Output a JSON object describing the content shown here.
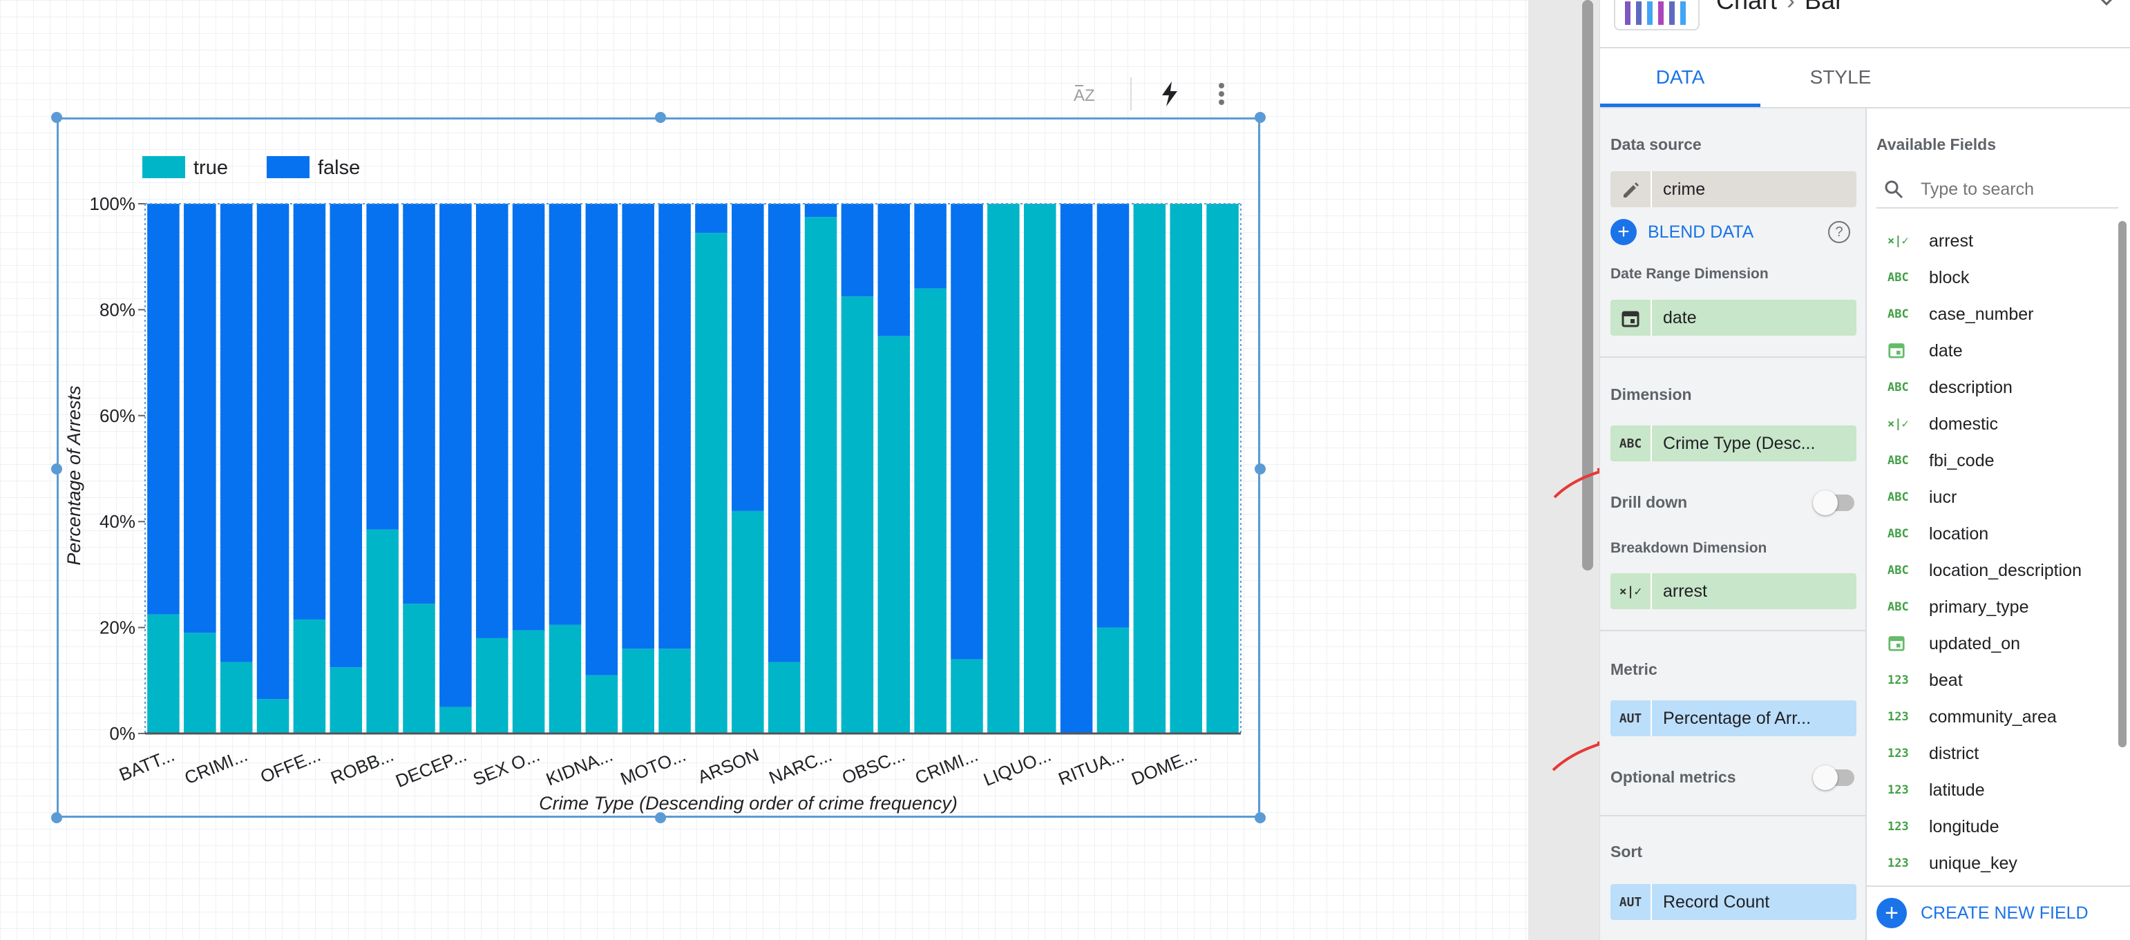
{
  "header": {
    "title": "Chart",
    "subtitle": "Bar"
  },
  "tabs": [
    {
      "label": "DATA"
    },
    {
      "label": "STYLE"
    }
  ],
  "data_source": {
    "label": "Data source",
    "value": "crime",
    "blend_label": "BLEND DATA"
  },
  "date_range": {
    "label": "Date Range Dimension",
    "value": "date"
  },
  "dimension": {
    "label": "Dimension",
    "type": "ABC",
    "value": "Crime Type (Desc..."
  },
  "drill_down": {
    "label": "Drill down",
    "enabled": false
  },
  "breakdown": {
    "label": "Breakdown Dimension",
    "type": "×|✓",
    "value": "arrest"
  },
  "metric": {
    "label": "Metric",
    "type": "AUT",
    "value": "Percentage of Arr..."
  },
  "optional_metrics": {
    "label": "Optional metrics",
    "enabled": false
  },
  "sort": {
    "label": "Sort",
    "type": "AUT",
    "value": "Record Count"
  },
  "available_fields": {
    "label": "Available Fields",
    "search_placeholder": "Type to search",
    "items": [
      {
        "type": "×|✓",
        "name": "arrest"
      },
      {
        "type": "ABC",
        "name": "block"
      },
      {
        "type": "ABC",
        "name": "case_number"
      },
      {
        "type": "date",
        "name": "date"
      },
      {
        "type": "ABC",
        "name": "description"
      },
      {
        "type": "×|✓",
        "name": "domestic"
      },
      {
        "type": "ABC",
        "name": "fbi_code"
      },
      {
        "type": "ABC",
        "name": "iucr"
      },
      {
        "type": "ABC",
        "name": "location"
      },
      {
        "type": "ABC",
        "name": "location_description"
      },
      {
        "type": "ABC",
        "name": "primary_type"
      },
      {
        "type": "date",
        "name": "updated_on"
      },
      {
        "type": "123",
        "name": "beat"
      },
      {
        "type": "123",
        "name": "community_area"
      },
      {
        "type": "123",
        "name": "district"
      },
      {
        "type": "123",
        "name": "latitude"
      },
      {
        "type": "123",
        "name": "longitude"
      },
      {
        "type": "123",
        "name": "unique_key"
      }
    ],
    "create_label": "CREATE NEW FIELD"
  },
  "colors": {
    "true": "#00b5c8",
    "false": "#0672ef",
    "accent": "#1a73e8"
  },
  "chart_data": {
    "type": "bar",
    "stacked": true,
    "title": "",
    "xlabel": "Crime Type (Descending order of crime frequency)",
    "ylabel": "Percentage of Arrests",
    "yticks": [
      "0%",
      "20%",
      "40%",
      "60%",
      "80%",
      "100%"
    ],
    "ylim": [
      0,
      100
    ],
    "legend_position": "top-left",
    "x_tick_labels": [
      "BATT...",
      "CRIMI...",
      "OFFE...",
      "ROBB...",
      "DECEP...",
      "SEX O...",
      "KIDNA...",
      "MOTO...",
      "ARSON",
      "NARC...",
      "OBSC...",
      "CRIMI...",
      "LIQUO...",
      "RITUA...",
      "DOME..."
    ],
    "series": [
      {
        "name": "true",
        "values": [
          22.5,
          19,
          13.5,
          6.5,
          21.5,
          12.5,
          38.5,
          24.5,
          5,
          18,
          19.5,
          20.5,
          11,
          16,
          16,
          94.5,
          42,
          13.5,
          97.5,
          82.5,
          75,
          84,
          14,
          100,
          100,
          0,
          20,
          100,
          100,
          100
        ]
      },
      {
        "name": "false",
        "values": [
          77.5,
          81,
          86.5,
          93.5,
          78.5,
          87.5,
          61.5,
          75.5,
          95,
          82,
          80.5,
          79.5,
          89,
          84,
          84,
          5.5,
          58,
          86.5,
          2.5,
          17.5,
          25,
          16,
          86,
          0,
          0,
          100,
          80,
          0,
          0,
          0
        ]
      }
    ]
  }
}
